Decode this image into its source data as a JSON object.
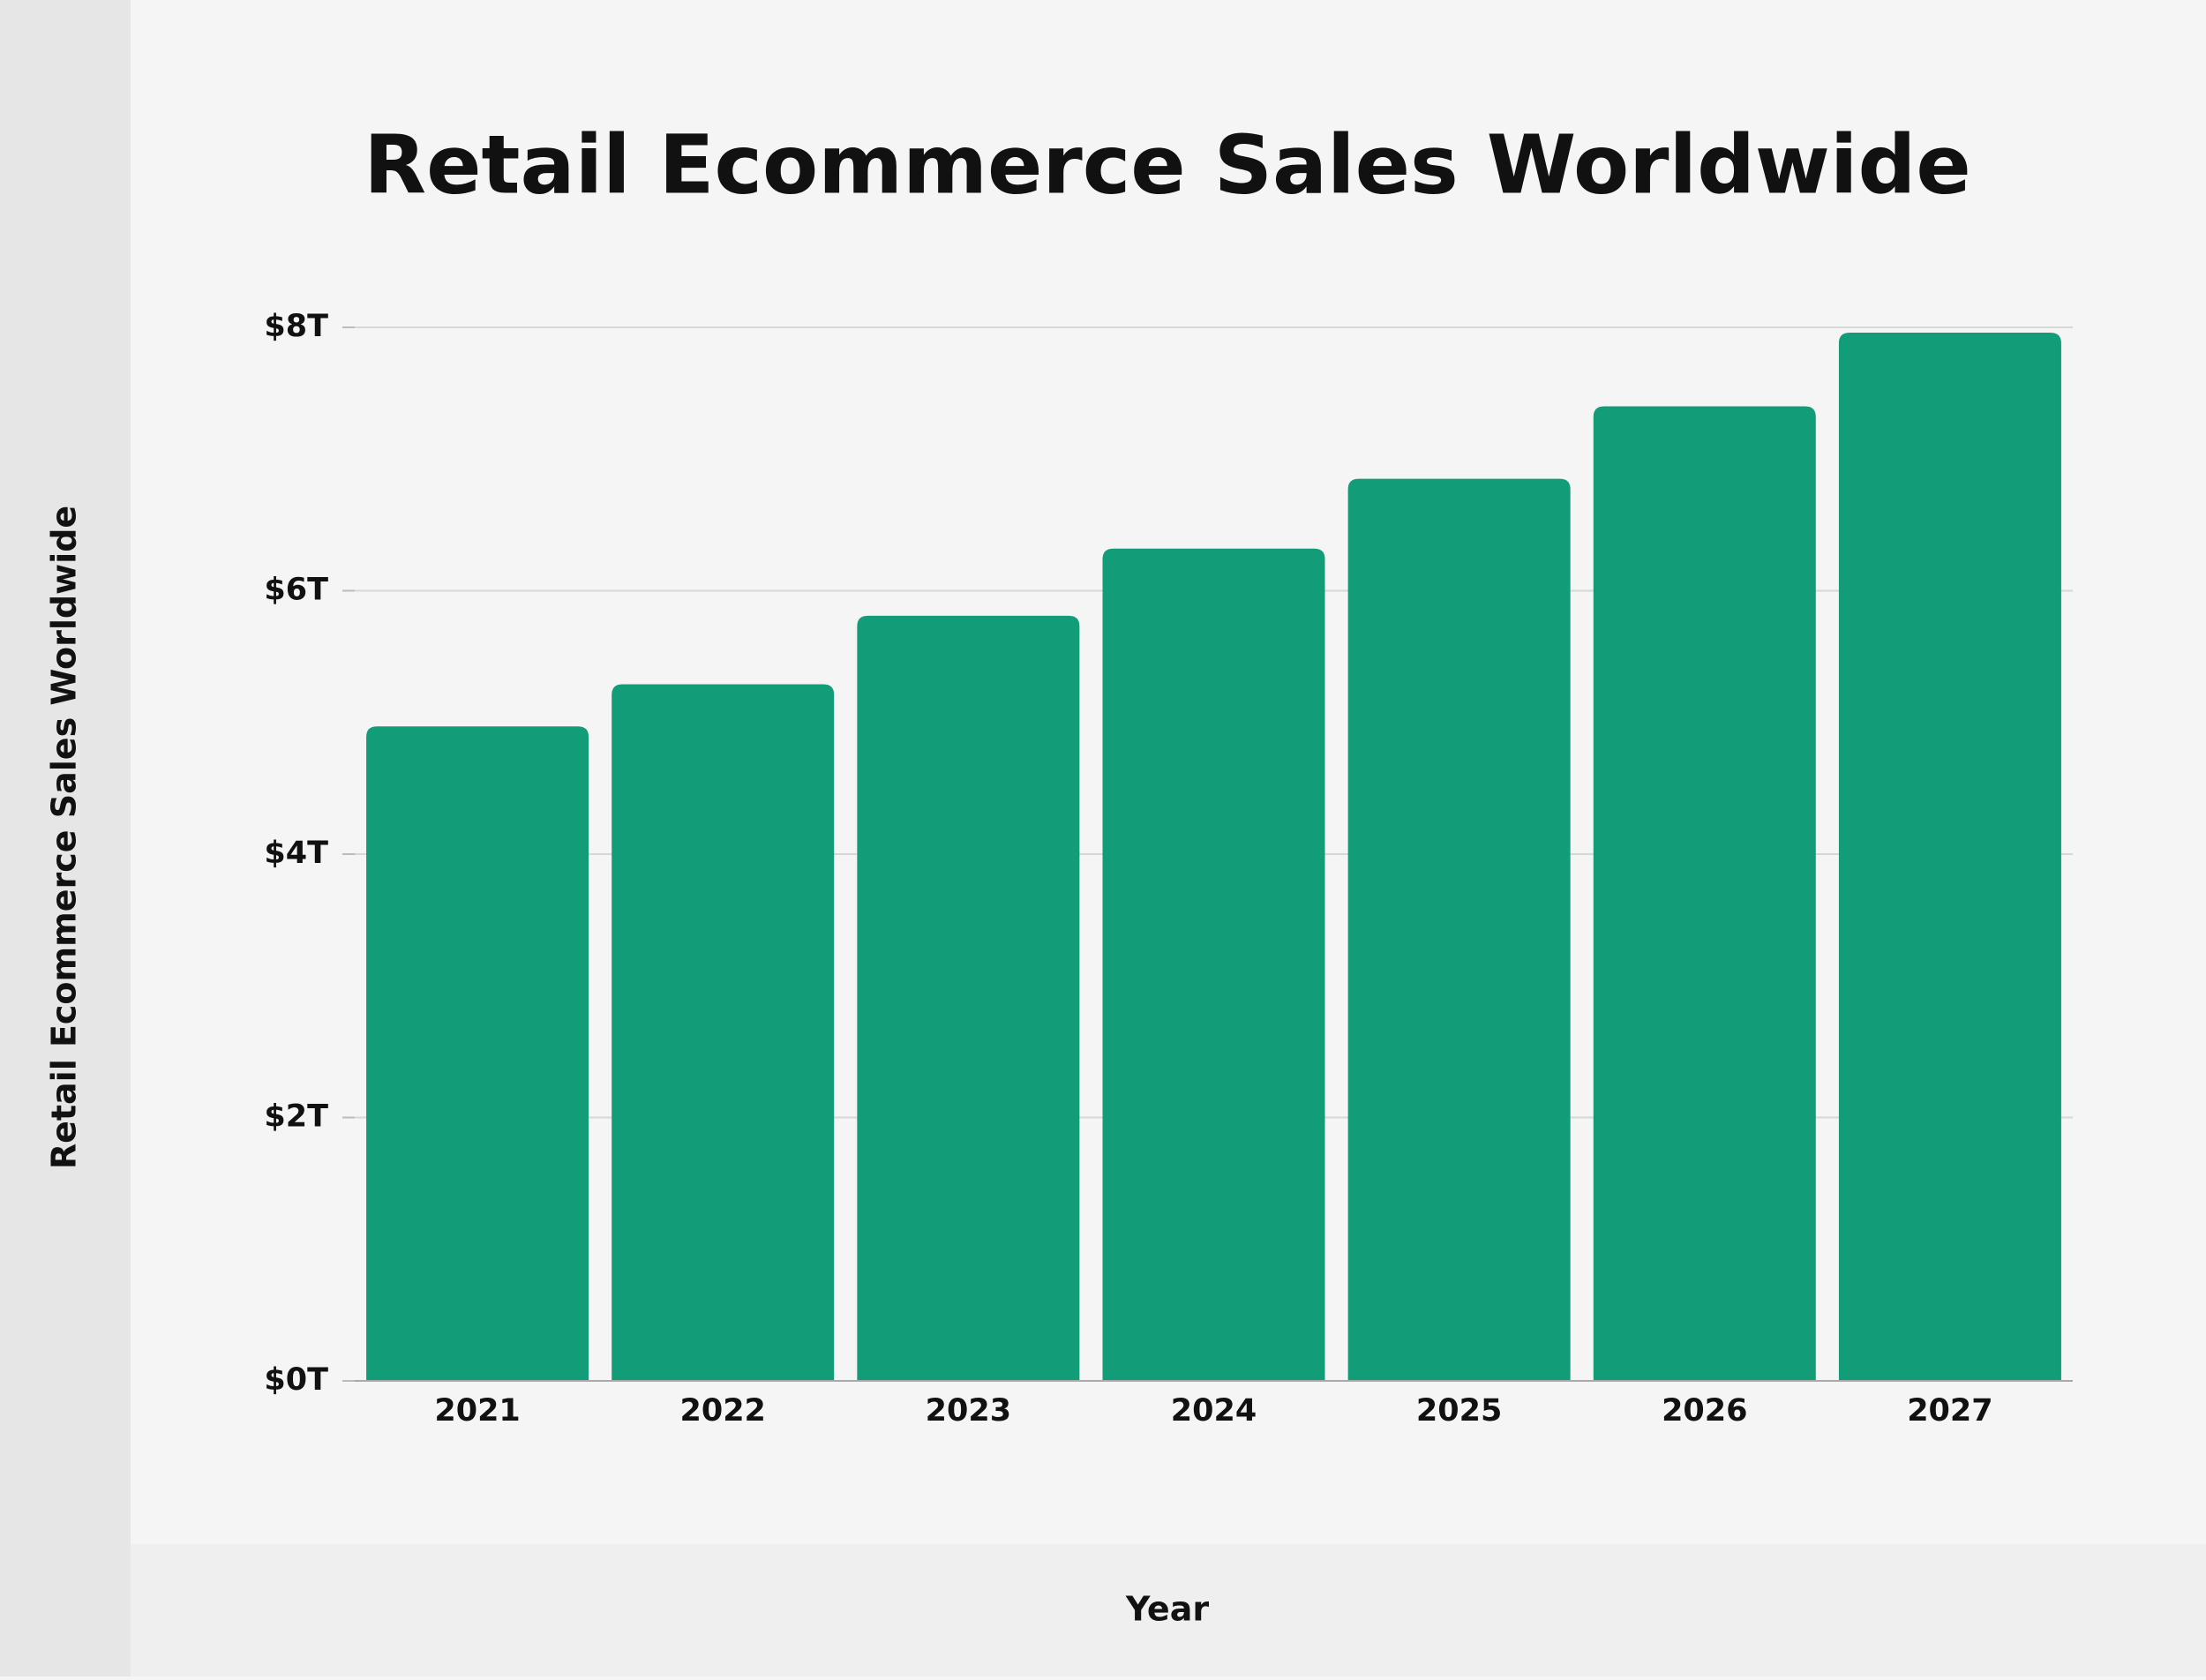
{
  "chart_data": {
    "type": "bar",
    "title": "Retail Ecommerce Sales Worldwide",
    "x_label": "Year",
    "y_label": "Retail Ecommerce Sales Worldwide",
    "categories": [
      "2021",
      "2022",
      "2023",
      "2024",
      "2025",
      "2026",
      "2027"
    ],
    "values": [
      4.97,
      5.29,
      5.81,
      6.32,
      6.85,
      7.4,
      7.96
    ],
    "color": "#139c78",
    "ylim": [
      0,
      8
    ],
    "yticks": [
      {
        "value": 0,
        "label": "$0T"
      },
      {
        "value": 2,
        "label": "$2T"
      },
      {
        "value": 4,
        "label": "$4T"
      },
      {
        "value": 6,
        "label": "$6T"
      },
      {
        "value": 8,
        "label": "$8T"
      }
    ],
    "grid": true
  }
}
